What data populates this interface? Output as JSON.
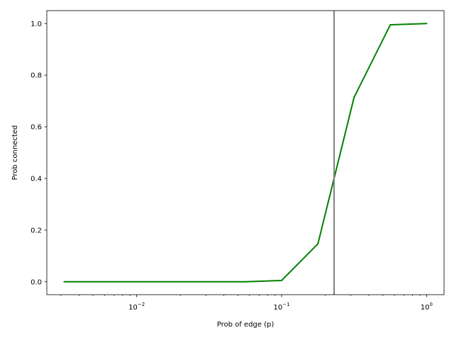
{
  "chart_data": {
    "type": "line",
    "xlabel": "Prob of edge (p)",
    "ylabel": "Prob connected",
    "xscale": "log",
    "xlim": [
      0.0024,
      1.32
    ],
    "ylim": [
      -0.05,
      1.05
    ],
    "grid": false,
    "legend": "none",
    "x_ticks": [
      {
        "value": 0.01,
        "base": "10",
        "exp": "−2"
      },
      {
        "value": 0.1,
        "base": "10",
        "exp": "−1"
      },
      {
        "value": 1,
        "base": "10",
        "exp": "0"
      }
    ],
    "y_ticks": [
      {
        "value": 0.0,
        "label": "0.0"
      },
      {
        "value": 0.2,
        "label": "0.2"
      },
      {
        "value": 0.4,
        "label": "0.4"
      },
      {
        "value": 0.6,
        "label": "0.6"
      },
      {
        "value": 0.8,
        "label": "0.8"
      },
      {
        "value": 1.0,
        "label": "1.0"
      }
    ],
    "series": [
      {
        "color": "#008000",
        "x": [
          0.00316,
          0.00562,
          0.01,
          0.0178,
          0.0316,
          0.0562,
          0.1,
          0.178,
          0.316,
          0.562,
          1.0
        ],
        "y": [
          0.0,
          0.0,
          0.0,
          0.0,
          0.0,
          0.0,
          0.005,
          0.147,
          0.714,
          0.995,
          1.0
        ]
      }
    ],
    "vline": {
      "x": 0.23,
      "color": "#808080"
    }
  }
}
